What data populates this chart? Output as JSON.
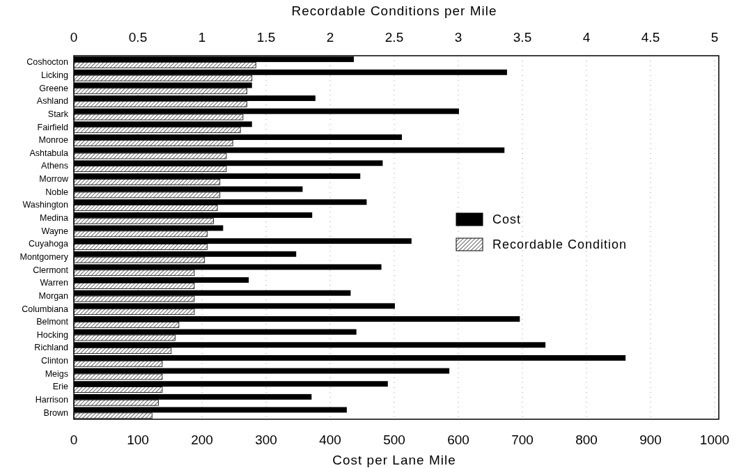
{
  "chart_data": {
    "type": "bar",
    "orientation": "horizontal",
    "xlabel": "Cost per Lane Mile",
    "x2label": "Recordable Conditions per Mile",
    "categories": [
      "Coshocton",
      "Licking",
      "Greene",
      "Ashland",
      "Stark",
      "Fairfield",
      "Monroe",
      "Ashtabula",
      "Athens",
      "Morrow",
      "Noble",
      "Washington",
      "Medina",
      "Wayne",
      "Cuyahoga",
      "Montgomery",
      "Clermont",
      "Warren",
      "Morgan",
      "Columbiana",
      "Belmont",
      "Hocking",
      "Richland",
      "Clinton",
      "Meigs",
      "Erie",
      "Harrison",
      "Brown"
    ],
    "series": [
      {
        "name": "Cost",
        "color": "#000000",
        "values": [
          437,
          676,
          278,
          377,
          601,
          278,
          512,
          672,
          482,
          447,
          357,
          457,
          372,
          233,
          527,
          347,
          480,
          273,
          432,
          501,
          696,
          441,
          736,
          861,
          586,
          490,
          371,
          426
        ]
      },
      {
        "name": "Recordable Condition",
        "color": "#000000",
        "axis": "x2",
        "values": [
          1.42,
          1.39,
          1.35,
          1.35,
          1.32,
          1.3,
          1.24,
          1.19,
          1.19,
          1.14,
          1.14,
          1.12,
          1.09,
          1.04,
          1.04,
          1.02,
          0.94,
          0.94,
          0.94,
          0.94,
          0.82,
          0.79,
          0.76,
          0.69,
          0.69,
          0.69,
          0.66,
          0.61
        ]
      }
    ],
    "xlim": [
      0,
      1000
    ],
    "xticks": [
      0,
      100,
      200,
      300,
      400,
      500,
      600,
      700,
      800,
      900,
      1000
    ],
    "x2lim": [
      0,
      5
    ],
    "x2ticks": [
      0,
      0.5,
      1,
      1.5,
      2,
      2.5,
      3,
      3.5,
      4,
      4.5,
      5
    ],
    "grid": "x",
    "legend": "right"
  }
}
